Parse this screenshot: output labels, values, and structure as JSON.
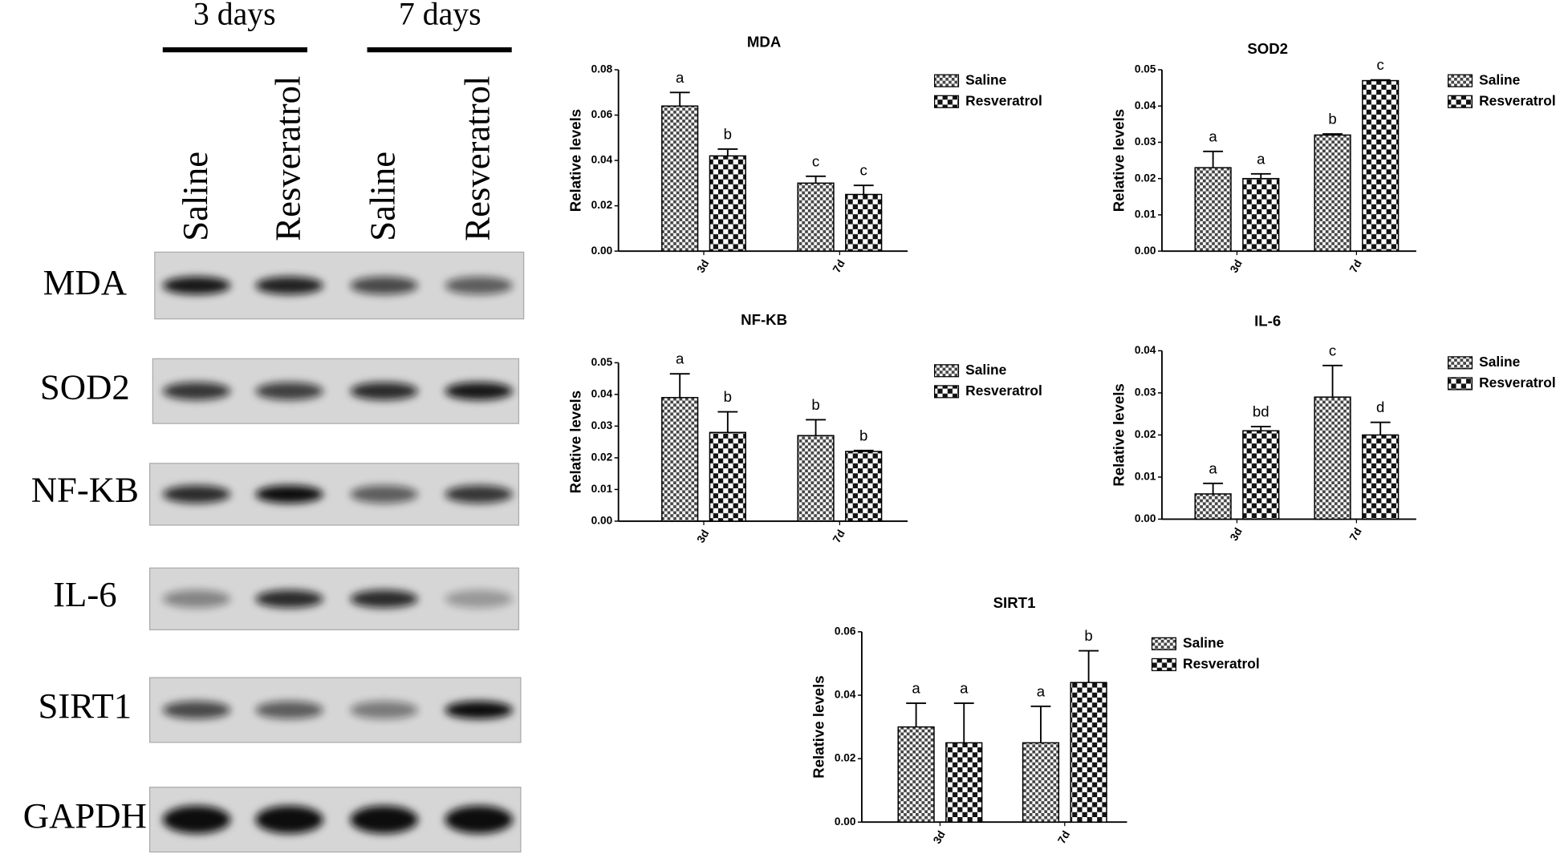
{
  "blot": {
    "time_points": [
      "3 days",
      "7 days"
    ],
    "lanes": [
      "Saline",
      "Resveratrol",
      "Saline",
      "Resveratrol"
    ],
    "proteins": [
      "MDA",
      "SOD2",
      "NF-KB",
      "IL-6",
      "SIRT1",
      "GAPDH"
    ]
  },
  "chart_data": [
    {
      "type": "bar",
      "title": "MDA",
      "y_label": "Relative  levels",
      "categories": [
        "3d",
        "7d"
      ],
      "ylim": [
        0,
        0.08
      ],
      "yticks": [
        {
          "value": 0,
          "label": "0.00"
        },
        {
          "value": 0.02,
          "label": "0.02"
        },
        {
          "value": 0.04,
          "label": "0.04"
        },
        {
          "value": 0.06,
          "label": "0.06"
        },
        {
          "value": 0.08,
          "label": "0.08"
        }
      ],
      "series": [
        {
          "name": "Saline",
          "color": "#444444",
          "values": [
            0.064,
            0.03
          ],
          "errors": [
            0.006,
            0.003
          ],
          "letters": [
            "a",
            "c"
          ]
        },
        {
          "name": "Resveratrol",
          "color": "#111111",
          "values": [
            0.042,
            0.025
          ],
          "errors": [
            0.003,
            0.004
          ],
          "letters": [
            "b",
            "c"
          ]
        }
      ]
    },
    {
      "type": "bar",
      "title": "SOD2",
      "y_label": "Relative  levels",
      "categories": [
        "3d",
        "7d"
      ],
      "ylim": [
        0,
        0.05
      ],
      "yticks": [
        {
          "value": 0,
          "label": "0.00"
        },
        {
          "value": 0.01,
          "label": "0.01"
        },
        {
          "value": 0.02,
          "label": "0.02"
        },
        {
          "value": 0.03,
          "label": "0.03"
        },
        {
          "value": 0.04,
          "label": "0.04"
        },
        {
          "value": 0.05,
          "label": "0.05"
        }
      ],
      "series": [
        {
          "name": "Saline",
          "color": "#444444",
          "values": [
            0.023,
            0.032
          ],
          "errors": [
            0.0045,
            0.0003
          ],
          "letters": [
            "a",
            "b"
          ]
        },
        {
          "name": "Resveratrol",
          "color": "#111111",
          "values": [
            0.02,
            0.047
          ],
          "errors": [
            0.0013,
            0.0002
          ],
          "letters": [
            "a",
            "c"
          ]
        }
      ]
    },
    {
      "type": "bar",
      "title": "NF-KB",
      "y_label": "Relative  levels",
      "categories": [
        "3d",
        "7d"
      ],
      "ylim": [
        0,
        0.05
      ],
      "yticks": [
        {
          "value": 0,
          "label": "0.00"
        },
        {
          "value": 0.01,
          "label": "0.01"
        },
        {
          "value": 0.02,
          "label": "0.02"
        },
        {
          "value": 0.03,
          "label": "0.03"
        },
        {
          "value": 0.04,
          "label": "0.04"
        },
        {
          "value": 0.05,
          "label": "0.05"
        }
      ],
      "series": [
        {
          "name": "Saline",
          "color": "#444444",
          "values": [
            0.039,
            0.027
          ],
          "errors": [
            0.0075,
            0.005
          ],
          "letters": [
            "a",
            "b"
          ]
        },
        {
          "name": "Resveratrol",
          "color": "#111111",
          "values": [
            0.028,
            0.022
          ],
          "errors": [
            0.0065,
            0.0003
          ],
          "letters": [
            "b",
            "b"
          ]
        }
      ]
    },
    {
      "type": "bar",
      "title": "IL-6",
      "y_label": "Relative  levels",
      "categories": [
        "3d",
        "7d"
      ],
      "ylim": [
        0,
        0.04
      ],
      "yticks": [
        {
          "value": 0,
          "label": "0.00"
        },
        {
          "value": 0.01,
          "label": "0.01"
        },
        {
          "value": 0.02,
          "label": "0.02"
        },
        {
          "value": 0.03,
          "label": "0.03"
        },
        {
          "value": 0.04,
          "label": "0.04"
        }
      ],
      "series": [
        {
          "name": "Saline",
          "color": "#444444",
          "values": [
            0.006,
            0.029
          ],
          "errors": [
            0.0025,
            0.0075
          ],
          "letters": [
            "a",
            "c"
          ]
        },
        {
          "name": "Resveratrol",
          "color": "#111111",
          "values": [
            0.021,
            0.02
          ],
          "errors": [
            0.001,
            0.003
          ],
          "letters": [
            "bd",
            "d"
          ]
        }
      ]
    },
    {
      "type": "bar",
      "title": "SIRT1",
      "y_label": "Relative  levels",
      "categories": [
        "3d",
        "7d"
      ],
      "ylim": [
        0,
        0.06
      ],
      "yticks": [
        {
          "value": 0,
          "label": "0.00"
        },
        {
          "value": 0.02,
          "label": "0.02"
        },
        {
          "value": 0.04,
          "label": "0.04"
        },
        {
          "value": 0.06,
          "label": "0.06"
        }
      ],
      "series": [
        {
          "name": "Saline",
          "color": "#444444",
          "values": [
            0.03,
            0.025
          ],
          "errors": [
            0.0075,
            0.0115
          ],
          "letters": [
            "a",
            "a"
          ]
        },
        {
          "name": "Resveratrol",
          "color": "#111111",
          "values": [
            0.025,
            0.044
          ],
          "errors": [
            0.0125,
            0.01
          ],
          "letters": [
            "a",
            "b"
          ]
        }
      ]
    }
  ]
}
